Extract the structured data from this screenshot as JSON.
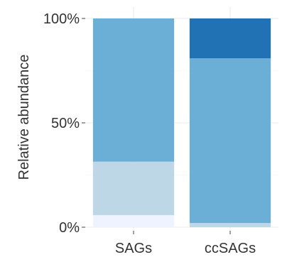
{
  "chart_data": {
    "type": "bar",
    "stacked": true,
    "categories": [
      "SAGs",
      "ccSAGs"
    ],
    "series": [
      {
        "color": "#eff3ff",
        "values": [
          5.8,
          0.0
        ]
      },
      {
        "color": "#bdd7e7",
        "values": [
          25.6,
          2.0
        ]
      },
      {
        "color": "#6baed6",
        "values": [
          68.6,
          78.9
        ]
      },
      {
        "color": "#2171b5",
        "values": [
          0.0,
          19.1
        ]
      }
    ],
    "ylabel": "Relative abundance",
    "xlabel": "",
    "ylim": [
      0,
      100
    ],
    "yticks": [
      0,
      50,
      100
    ],
    "ytick_labels": [
      "0%",
      "50%",
      "100%"
    ],
    "grid": true,
    "legend": "none"
  }
}
